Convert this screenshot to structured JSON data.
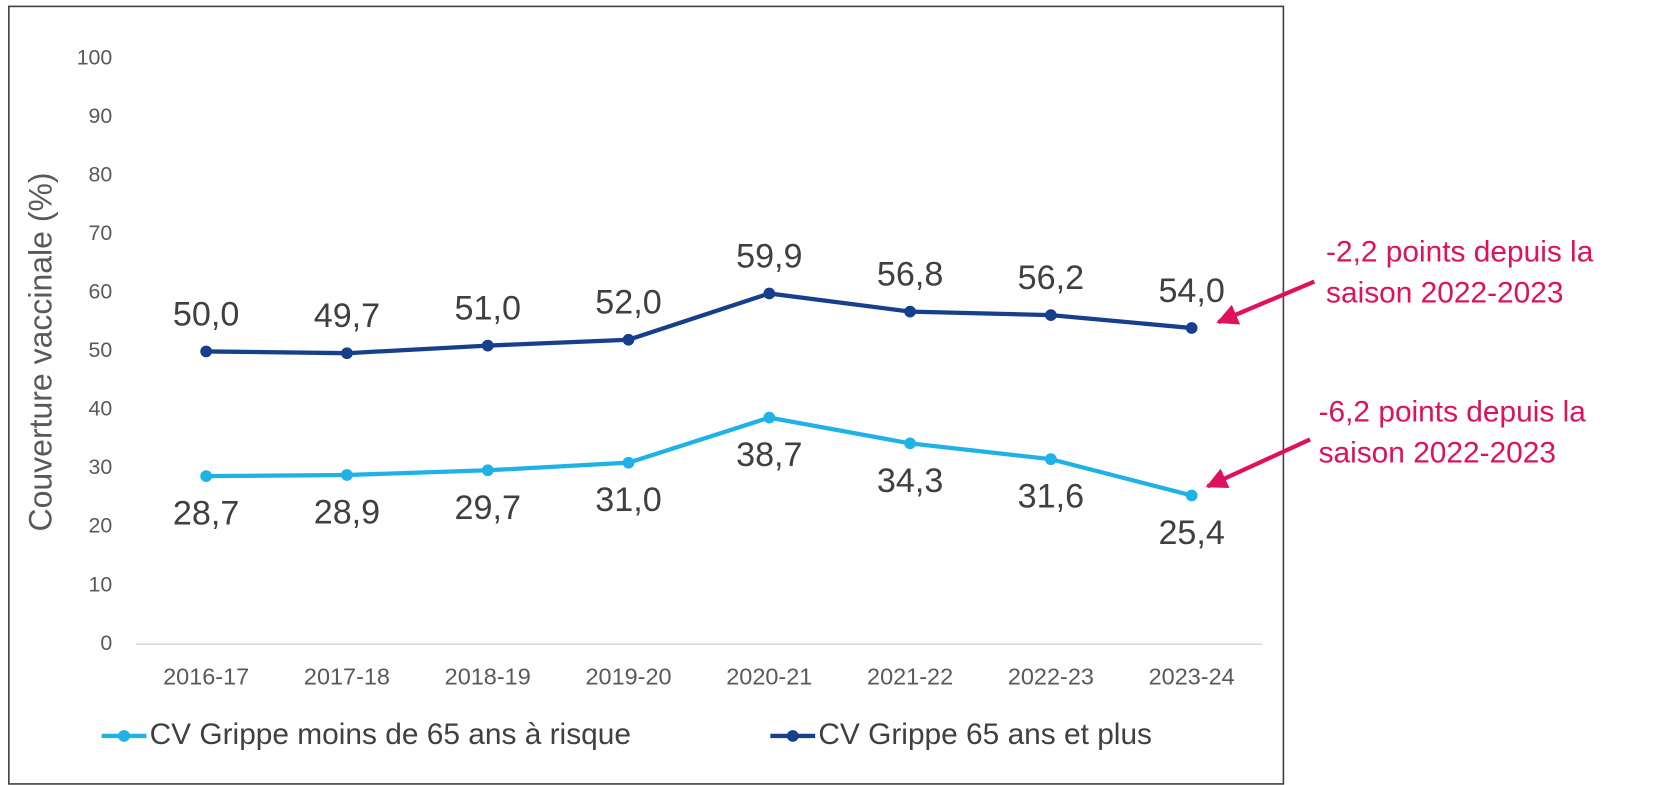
{
  "chart_data": {
    "type": "line",
    "y_label": "Couverture vaccinale (%)",
    "categories": [
      "2016-17",
      "2017-18",
      "2018-19",
      "2019-20",
      "2020-21",
      "2021-22",
      "2022-23",
      "2023-24"
    ],
    "series": [
      {
        "name": "CV Grippe moins de 65 ans à risque",
        "color": "#1fb2e6",
        "values": [
          28.7,
          28.9,
          29.7,
          31.0,
          38.7,
          34.3,
          31.6,
          25.4
        ],
        "value_labels": [
          "28,7",
          "28,9",
          "29,7",
          "31,0",
          "38,7",
          "34,3",
          "31,6",
          "25,4"
        ]
      },
      {
        "name": "CV Grippe 65 ans et plus",
        "color": "#163f8c",
        "values": [
          50.0,
          49.7,
          51.0,
          52.0,
          59.9,
          56.8,
          56.2,
          54.0
        ],
        "value_labels": [
          "50,0",
          "49,7",
          "51,0",
          "52,0",
          "59,9",
          "56,8",
          "56,2",
          "54,0"
        ]
      }
    ],
    "ylim": [
      0,
      100
    ],
    "yticks": [
      0,
      10,
      20,
      30,
      40,
      50,
      60,
      70,
      80,
      90,
      100
    ],
    "legend": "bottom",
    "annotations": [
      {
        "lines": [
          "-2,2 points depuis la",
          "saison 2022-2023"
        ],
        "color": "#e0105c"
      },
      {
        "lines": [
          "-6,2 points depuis la",
          "saison 2022-2023"
        ],
        "color": "#e0105c"
      }
    ]
  }
}
